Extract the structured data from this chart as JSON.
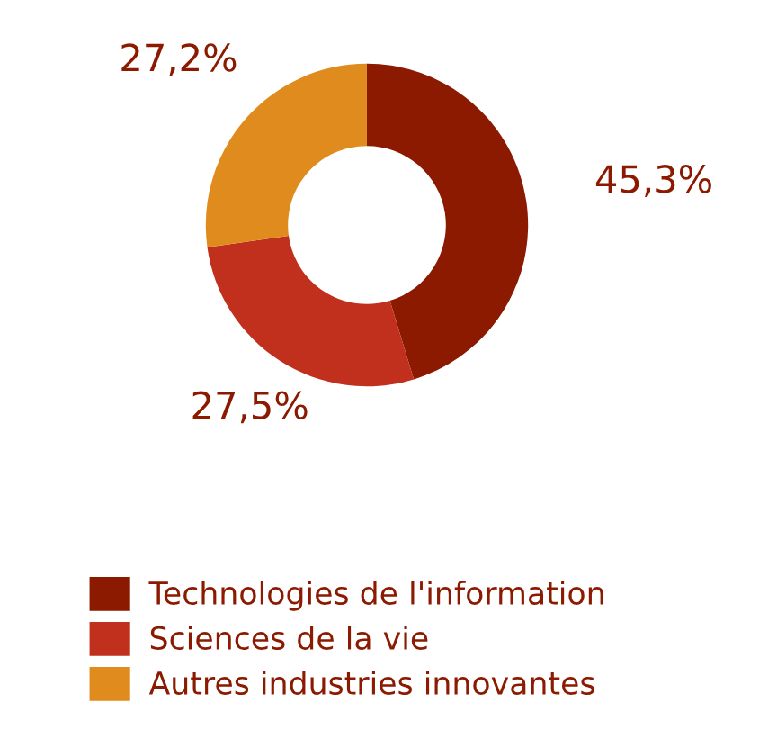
{
  "chart_data": {
    "type": "donut",
    "categories": [
      "Technologies de l'information",
      "Sciences de la vie",
      "Autres industries innovantes"
    ],
    "values": [
      45.3,
      27.5,
      27.2
    ],
    "colors": [
      "#8b1a00",
      "#c1301d",
      "#e08b1d"
    ],
    "value_labels": [
      "45,3%",
      "27,5%",
      "27,2%"
    ],
    "legend": "bottom"
  }
}
